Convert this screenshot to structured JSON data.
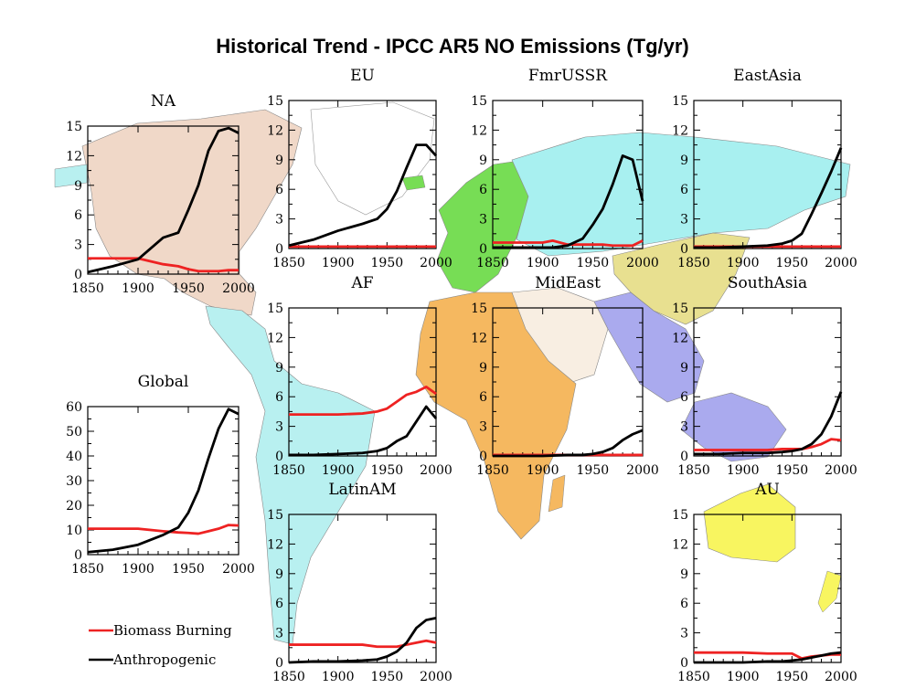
{
  "title": "Historical Trend - IPCC AR5 NO Emissions (Tg/yr)",
  "colors": {
    "biomass": "#ee2222",
    "anthropogenic": "#000000",
    "north_america": "#f0d8c8",
    "europe": "#77dd55",
    "russia": "#a8f0f0",
    "east_asia": "#a8f0f0",
    "middle_east": "#f8eee2",
    "south_asia": "#aaaaee",
    "asia_yellow": "#e8e090",
    "africa": "#f5b860",
    "latin_america": "#b8f0f0",
    "australia": "#f8f560",
    "greenland": "#ffffff"
  },
  "legend": [
    {
      "label": "Biomass Burning",
      "color": "#ee2222"
    },
    {
      "label": "Anthropogenic",
      "color": "#000000"
    }
  ],
  "chart_data": [
    {
      "type": "line",
      "name": "NA",
      "title": "NA",
      "x": [
        1850,
        1875,
        1900,
        1925,
        1940,
        1950,
        1960,
        1970,
        1980,
        1990,
        2000
      ],
      "xlim": [
        1850,
        2000
      ],
      "ylim": [
        0,
        15
      ],
      "xticks": [
        "1850",
        "1900",
        "1950",
        "2000"
      ],
      "yticks": [
        "0",
        "3",
        "6",
        "9",
        "12",
        "15"
      ],
      "series": [
        {
          "name": "Biomass Burning",
          "values": [
            1.6,
            1.6,
            1.6,
            1.0,
            0.8,
            0.5,
            0.3,
            0.3,
            0.3,
            0.4,
            0.4
          ]
        },
        {
          "name": "Anthropogenic",
          "values": [
            0.2,
            0.8,
            1.5,
            3.7,
            4.2,
            6.5,
            9.0,
            12.5,
            14.5,
            14.8,
            14.3
          ]
        }
      ]
    },
    {
      "type": "line",
      "name": "EU",
      "title": "EU",
      "x": [
        1850,
        1875,
        1900,
        1925,
        1940,
        1950,
        1960,
        1970,
        1980,
        1990,
        2000
      ],
      "xlim": [
        1850,
        2000
      ],
      "ylim": [
        0,
        15
      ],
      "xticks": [
        "1850",
        "1900",
        "1950",
        "2000"
      ],
      "yticks": [
        "0",
        "3",
        "6",
        "9",
        "12",
        "15"
      ],
      "series": [
        {
          "name": "Biomass Burning",
          "values": [
            0.2,
            0.2,
            0.2,
            0.2,
            0.2,
            0.2,
            0.2,
            0.2,
            0.2,
            0.2,
            0.2
          ]
        },
        {
          "name": "Anthropogenic",
          "values": [
            0.3,
            0.9,
            1.8,
            2.5,
            3.0,
            4.0,
            5.8,
            8.2,
            10.5,
            10.5,
            9.4
          ]
        }
      ]
    },
    {
      "type": "line",
      "name": "FmrUSSR",
      "title": "FmrUSSR",
      "x": [
        1850,
        1875,
        1900,
        1910,
        1925,
        1940,
        1950,
        1960,
        1970,
        1980,
        1990,
        2000
      ],
      "xlim": [
        1850,
        2000
      ],
      "ylim": [
        0,
        15
      ],
      "xticks": [
        "1850",
        "1900",
        "1950",
        "2000"
      ],
      "yticks": [
        "0",
        "3",
        "6",
        "9",
        "12",
        "15"
      ],
      "series": [
        {
          "name": "Biomass Burning",
          "values": [
            0.6,
            0.6,
            0.6,
            0.8,
            0.4,
            0.4,
            0.4,
            0.4,
            0.3,
            0.3,
            0.3,
            0.8
          ]
        },
        {
          "name": "Anthropogenic",
          "values": [
            0.1,
            0.1,
            0.1,
            0.1,
            0.3,
            1.0,
            2.4,
            4.0,
            6.5,
            9.4,
            9.0,
            4.8
          ]
        }
      ]
    },
    {
      "type": "line",
      "name": "EastAsia",
      "title": "EastAsia",
      "x": [
        1850,
        1875,
        1900,
        1925,
        1940,
        1950,
        1960,
        1970,
        1980,
        1990,
        2000
      ],
      "xlim": [
        1850,
        2000
      ],
      "ylim": [
        0,
        15
      ],
      "xticks": [
        "1850",
        "1900",
        "1950",
        "2000"
      ],
      "yticks": [
        "0",
        "3",
        "6",
        "9",
        "12",
        "15"
      ],
      "series": [
        {
          "name": "Biomass Burning",
          "values": [
            0.2,
            0.2,
            0.2,
            0.2,
            0.2,
            0.2,
            0.2,
            0.2,
            0.2,
            0.2,
            0.2
          ]
        },
        {
          "name": "Anthropogenic",
          "values": [
            0.1,
            0.1,
            0.2,
            0.3,
            0.5,
            0.8,
            1.5,
            3.5,
            5.6,
            7.8,
            10.2
          ]
        }
      ]
    },
    {
      "type": "line",
      "name": "AF",
      "title": "AF",
      "x": [
        1850,
        1875,
        1900,
        1925,
        1940,
        1950,
        1960,
        1970,
        1980,
        1990,
        2000
      ],
      "xlim": [
        1850,
        2000
      ],
      "ylim": [
        0,
        15
      ],
      "xticks": [
        "1850",
        "1900",
        "1950",
        "2000"
      ],
      "yticks": [
        "0",
        "3",
        "6",
        "9",
        "12",
        "15"
      ],
      "series": [
        {
          "name": "Biomass Burning",
          "values": [
            4.2,
            4.2,
            4.2,
            4.3,
            4.5,
            4.8,
            5.5,
            6.2,
            6.5,
            7.0,
            6.3
          ]
        },
        {
          "name": "Anthropogenic",
          "values": [
            0.1,
            0.1,
            0.2,
            0.3,
            0.5,
            0.8,
            1.5,
            2.0,
            3.5,
            5.0,
            3.8
          ]
        }
      ]
    },
    {
      "type": "line",
      "name": "MidEast",
      "title": "MidEast",
      "x": [
        1850,
        1875,
        1900,
        1925,
        1940,
        1950,
        1960,
        1970,
        1980,
        1990,
        2000
      ],
      "xlim": [
        1850,
        2000
      ],
      "ylim": [
        0,
        15
      ],
      "xticks": [
        "1850",
        "1900",
        "1950",
        "2000"
      ],
      "yticks": [
        "0",
        "3",
        "6",
        "9",
        "12",
        "15"
      ],
      "series": [
        {
          "name": "Biomass Burning",
          "values": [
            0.1,
            0.1,
            0.1,
            0.1,
            0.1,
            0.1,
            0.1,
            0.1,
            0.1,
            0.1,
            0.1
          ]
        },
        {
          "name": "Anthropogenic",
          "values": [
            0.0,
            0.0,
            0.0,
            0.1,
            0.1,
            0.2,
            0.4,
            0.8,
            1.6,
            2.2,
            2.6
          ]
        }
      ]
    },
    {
      "type": "line",
      "name": "SouthAsia",
      "title": "SouthAsia",
      "x": [
        1850,
        1875,
        1900,
        1925,
        1940,
        1950,
        1960,
        1970,
        1980,
        1990,
        2000
      ],
      "xlim": [
        1850,
        2000
      ],
      "ylim": [
        0,
        15
      ],
      "xticks": [
        "1850",
        "1900",
        "1950",
        "2000"
      ],
      "yticks": [
        "0",
        "3",
        "6",
        "9",
        "12",
        "15"
      ],
      "series": [
        {
          "name": "Biomass Burning",
          "values": [
            0.6,
            0.6,
            0.6,
            0.6,
            0.7,
            0.7,
            0.7,
            0.9,
            1.2,
            1.7,
            1.6
          ]
        },
        {
          "name": "Anthropogenic",
          "values": [
            0.2,
            0.2,
            0.3,
            0.3,
            0.4,
            0.5,
            0.7,
            1.2,
            2.2,
            4.0,
            6.5
          ]
        }
      ]
    },
    {
      "type": "line",
      "name": "Global",
      "title": "Global",
      "x": [
        1850,
        1875,
        1900,
        1925,
        1940,
        1950,
        1960,
        1970,
        1980,
        1990,
        2000
      ],
      "xlim": [
        1850,
        2000
      ],
      "ylim": [
        0,
        60
      ],
      "xticks": [
        "1850",
        "1900",
        "1950",
        "2000"
      ],
      "yticks": [
        "0",
        "10",
        "20",
        "30",
        "40",
        "50",
        "60"
      ],
      "series": [
        {
          "name": "Biomass Burning",
          "values": [
            10.5,
            10.5,
            10.5,
            9.5,
            9.0,
            8.8,
            8.5,
            9.5,
            10.5,
            12.0,
            11.8
          ]
        },
        {
          "name": "Anthropogenic",
          "values": [
            1.0,
            2.0,
            4.0,
            8.0,
            11.0,
            17.0,
            26.0,
            39.0,
            51.0,
            59.0,
            57.0
          ]
        }
      ]
    },
    {
      "type": "line",
      "name": "LatinAM",
      "title": "LatinAM",
      "x": [
        1850,
        1875,
        1900,
        1925,
        1940,
        1950,
        1960,
        1970,
        1980,
        1990,
        2000
      ],
      "xlim": [
        1850,
        2000
      ],
      "ylim": [
        0,
        15
      ],
      "xticks": [
        "1850",
        "1900",
        "1950",
        "2000"
      ],
      "yticks": [
        "0",
        "3",
        "6",
        "9",
        "12",
        "15"
      ],
      "series": [
        {
          "name": "Biomass Burning",
          "values": [
            1.8,
            1.8,
            1.8,
            1.8,
            1.6,
            1.6,
            1.6,
            1.8,
            2.0,
            2.2,
            2.0
          ]
        },
        {
          "name": "Anthropogenic",
          "values": [
            0.0,
            0.1,
            0.1,
            0.2,
            0.3,
            0.6,
            1.1,
            2.0,
            3.5,
            4.3,
            4.5
          ]
        }
      ]
    },
    {
      "type": "line",
      "name": "AU",
      "title": "AU",
      "x": [
        1850,
        1875,
        1900,
        1925,
        1940,
        1950,
        1960,
        1970,
        1980,
        1990,
        2000
      ],
      "xlim": [
        1850,
        2000
      ],
      "ylim": [
        0,
        15
      ],
      "xticks": [
        "1850",
        "1900",
        "1950",
        "2000"
      ],
      "yticks": [
        "0",
        "3",
        "6",
        "9",
        "12",
        "15"
      ],
      "series": [
        {
          "name": "Biomass Burning",
          "values": [
            1.0,
            1.0,
            1.0,
            0.9,
            0.9,
            0.9,
            0.4,
            0.6,
            0.7,
            0.8,
            0.8
          ]
        },
        {
          "name": "Anthropogenic",
          "values": [
            0.0,
            0.0,
            0.0,
            0.1,
            0.1,
            0.2,
            0.3,
            0.5,
            0.7,
            0.9,
            1.0
          ]
        }
      ]
    }
  ]
}
